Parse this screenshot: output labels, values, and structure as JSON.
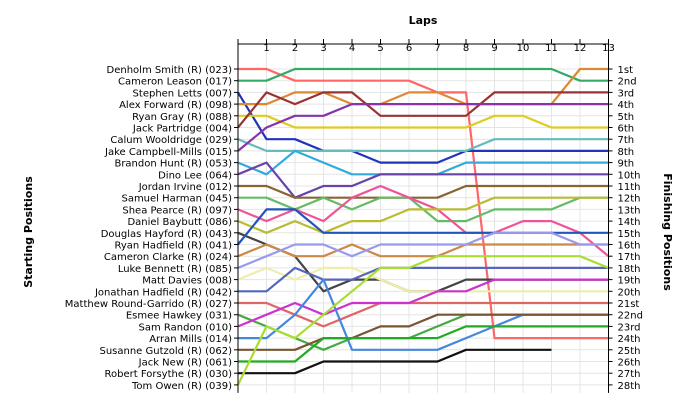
{
  "chart_data": {
    "type": "line",
    "title": "Laps",
    "ylabel_left": "Starting Positions",
    "ylabel_right": "Finishing Positions",
    "laps": [
      "1",
      "2",
      "3",
      "4",
      "5",
      "6",
      "7",
      "8",
      "9",
      "10",
      "11",
      "12",
      "13"
    ],
    "positions": [
      "1st",
      "2nd",
      "3rd",
      "4th",
      "5th",
      "6th",
      "7th",
      "8th",
      "9th",
      "10th",
      "11th",
      "12th",
      "13th",
      "14th",
      "15th",
      "16th",
      "17th",
      "18th",
      "19th",
      "20th",
      "21st",
      "22nd",
      "23rd",
      "24th",
      "25th",
      "26th",
      "27th",
      "28th"
    ],
    "grid": true,
    "series": [
      {
        "name": "Denholm Smith  (R) (023)",
        "color": "#ff6666",
        "positions": [
          1,
          1,
          2,
          2,
          2,
          2,
          2,
          3,
          3,
          24,
          24,
          24,
          24,
          24
        ]
      },
      {
        "name": "Cameron Leason (017)",
        "color": "#33aa66",
        "positions": [
          2,
          2,
          1,
          1,
          1,
          1,
          1,
          1,
          1,
          1,
          1,
          1,
          2,
          2
        ]
      },
      {
        "name": "Stephen Letts (007)",
        "color": "#2233bb",
        "positions": [
          3,
          7,
          7,
          8,
          8,
          9,
          9,
          9,
          8,
          8,
          8,
          8,
          8,
          8
        ]
      },
      {
        "name": "Alex Forward  (R) (098)",
        "color": "#dd8833",
        "positions": [
          4,
          4,
          3,
          3,
          4,
          4,
          3,
          3,
          4,
          4,
          4,
          4,
          1,
          1
        ]
      },
      {
        "name": "Ryan Gray   (R) (088)",
        "color": "#ddcc22",
        "positions": [
          5,
          5,
          6,
          6,
          6,
          6,
          6,
          6,
          6,
          5,
          5,
          6,
          6,
          6
        ]
      },
      {
        "name": "Jack Partridge (004)",
        "color": "#993333",
        "positions": [
          6,
          3,
          4,
          3,
          3,
          5,
          5,
          5,
          5,
          3,
          3,
          3,
          3,
          3
        ]
      },
      {
        "name": "Calum Wooldridge (029)",
        "color": "#66bbbb",
        "positions": [
          7,
          8,
          8,
          8,
          8,
          8,
          8,
          8,
          8,
          7,
          7,
          7,
          7,
          7
        ]
      },
      {
        "name": "Jake Campbell-Mills (015)",
        "color": "#8833aa",
        "positions": [
          8,
          6,
          5,
          5,
          4,
          4,
          4,
          4,
          4,
          4,
          4,
          4,
          4,
          4
        ]
      },
      {
        "name": "Brandon Hunt (R) (053)",
        "color": "#33aadd",
        "positions": [
          9,
          10,
          8,
          9,
          10,
          10,
          10,
          10,
          9,
          9,
          9,
          9,
          9,
          9
        ]
      },
      {
        "name": "Dino Lee (064)",
        "color": "#6644aa",
        "positions": [
          10,
          9,
          12,
          11,
          11,
          10,
          10,
          10,
          10,
          10,
          10,
          10,
          10,
          10
        ]
      },
      {
        "name": "Jordan Irvine (012)",
        "color": "#886633",
        "positions": [
          11,
          11,
          12,
          12,
          12,
          12,
          12,
          12,
          11,
          11,
          11,
          11,
          11,
          11
        ]
      },
      {
        "name": "Samuel Harman (045)",
        "color": "#66bb66",
        "positions": [
          12,
          12,
          13,
          12,
          13,
          12,
          12,
          14,
          14,
          13,
          13,
          13,
          12,
          12
        ]
      },
      {
        "name": "Shea Pearce (R) (097)",
        "color": "#ee5599",
        "positions": [
          13,
          14,
          13,
          14,
          12,
          11,
          12,
          13,
          15,
          15,
          14,
          14,
          15,
          17
        ]
      },
      {
        "name": "Daniel Baybutt (086)",
        "color": "#bbbb33",
        "positions": [
          14,
          15,
          14,
          15,
          14,
          14,
          13,
          13,
          13,
          12,
          12,
          12,
          12,
          12
        ]
      },
      {
        "name": "Douglas Hayford (R) (043)",
        "color": "#444444",
        "positions": [
          15,
          16,
          17,
          20,
          19,
          19,
          20,
          20,
          19,
          19,
          19,
          19,
          19,
          19
        ]
      },
      {
        "name": "Ryan Hadfield (R) (041)",
        "color": "#2255bb",
        "positions": [
          16,
          13,
          13,
          15,
          15,
          15,
          15,
          15,
          15,
          15,
          15,
          15,
          15,
          15
        ]
      },
      {
        "name": "Cameron Clarke  (R) (024)",
        "color": "#cc8844",
        "positions": [
          17,
          16,
          17,
          17,
          16,
          17,
          17,
          17,
          16,
          16,
          16,
          16,
          16,
          16
        ]
      },
      {
        "name": "Luke Bennett  (R) (085)",
        "color": "#9999ee",
        "positions": [
          18,
          17,
          16,
          16,
          17,
          16,
          16,
          16,
          16,
          15,
          15,
          15,
          16,
          16
        ]
      },
      {
        "name": "Matt Davies (008)",
        "color": "#eeeeaa",
        "positions": [
          19,
          18,
          19,
          18,
          18,
          19,
          20,
          20,
          20,
          20,
          20,
          20,
          20,
          20
        ]
      },
      {
        "name": "Jonathan Hadfield (R) (042)",
        "color": "#5566bb",
        "positions": [
          20,
          20,
          18,
          19,
          19,
          18,
          18,
          18,
          18,
          18,
          18,
          18,
          18,
          18
        ]
      },
      {
        "name": "Matthew Round-Garrido (R) (027)",
        "color": "#dd6666",
        "positions": [
          21,
          21,
          22,
          23,
          22,
          21,
          21,
          21,
          21,
          21,
          21,
          21,
          21,
          21
        ]
      },
      {
        "name": "Esmee Hawkey (031)",
        "color": "#44aa44",
        "positions": [
          22,
          23,
          24,
          25,
          24,
          24,
          24,
          23,
          22,
          22,
          22,
          22,
          22,
          22
        ]
      },
      {
        "name": "Sam Randon (010)",
        "color": "#cc33cc",
        "positions": [
          23,
          22,
          21,
          22,
          21,
          21,
          21,
          20,
          20,
          19,
          19,
          19,
          19,
          19
        ]
      },
      {
        "name": "Arran Mills (014)",
        "color": "#4488dd",
        "positions": [
          24,
          24,
          22,
          19,
          25,
          25,
          25,
          25,
          24,
          23,
          22,
          22,
          22,
          22
        ]
      },
      {
        "name": "Susanne Gutzold (R) (062)",
        "color": "#775533",
        "positions": [
          25,
          25,
          25,
          24,
          24,
          23,
          23,
          22,
          22,
          22,
          22,
          22,
          22,
          22
        ]
      },
      {
        "name": "Jack New  (R) (061)",
        "color": "#22aa22",
        "positions": [
          26,
          26,
          26,
          24,
          24,
          24,
          24,
          24,
          23,
          23,
          23,
          23,
          23,
          23
        ]
      },
      {
        "name": "Robert Forsythe (R) (030)",
        "color": "#111111",
        "positions": [
          27,
          27,
          27,
          26,
          26,
          26,
          26,
          26,
          25,
          25,
          25,
          25
        ]
      },
      {
        "name": "Tom Owen (R) (039)",
        "color": "#aadd33",
        "positions": [
          28,
          23,
          24,
          22,
          20,
          18,
          18,
          17,
          17,
          17,
          17,
          17,
          17,
          18
        ]
      }
    ]
  }
}
